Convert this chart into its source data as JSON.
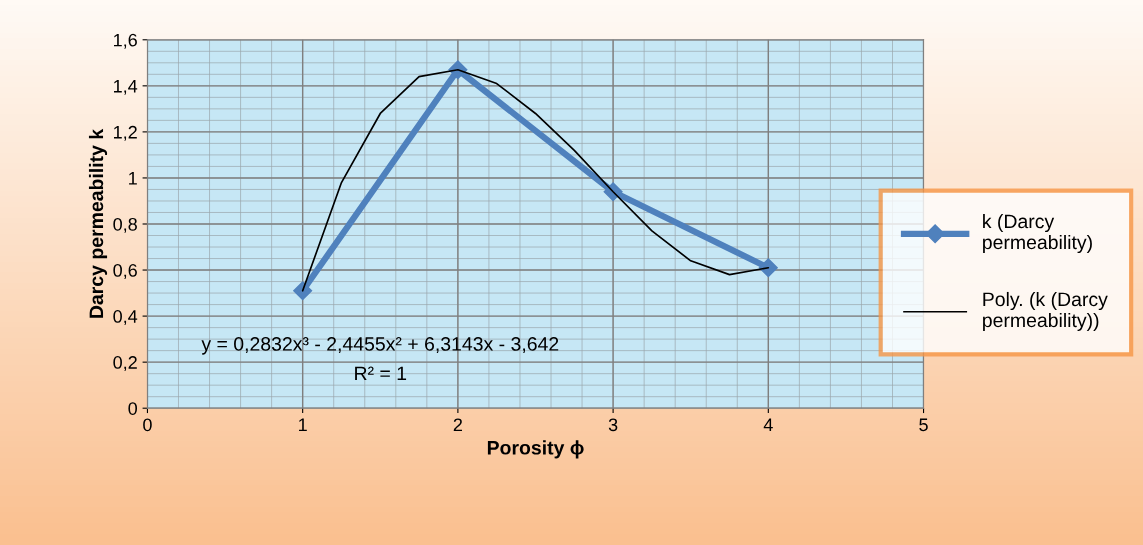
{
  "chart_data": {
    "type": "line",
    "xlabel": "Porosity ϕ",
    "ylabel": "Darcy permeability k",
    "xlim": [
      0,
      5
    ],
    "xticks": [
      0,
      1,
      2,
      3,
      4,
      5
    ],
    "ylim": [
      0,
      1.6
    ],
    "yticks": [
      0,
      {
        "value": 0.2,
        "label": "0,2"
      },
      {
        "value": 0.4,
        "label": "0,4"
      },
      {
        "value": 0.6,
        "label": "0,6"
      },
      {
        "value": 0.8,
        "label": "0,8"
      },
      1,
      {
        "value": 1.2,
        "label": "1,2"
      },
      {
        "value": 1.4,
        "label": "1,4"
      },
      {
        "value": 1.6,
        "label": "1,6"
      }
    ],
    "grid": true,
    "legend": "right",
    "series": [
      {
        "name": "k (Darcy\npermeability)",
        "color": "#4f81bd",
        "marker": "diamond",
        "x": [
          1,
          2,
          3,
          4
        ],
        "values": [
          0.51,
          1.47,
          0.94,
          0.61
        ]
      },
      {
        "name": "Poly. (k (Darcy\npermeability))",
        "color": "#000000",
        "marker": "none",
        "x": [
          1,
          1.25,
          1.5,
          1.75,
          2,
          2.25,
          2.5,
          2.75,
          3,
          3.25,
          3.5,
          3.75,
          4
        ],
        "values": [
          0.51,
          0.98,
          1.28,
          1.44,
          1.47,
          1.41,
          1.28,
          1.12,
          0.94,
          0.77,
          0.64,
          0.58,
          0.61
        ]
      }
    ],
    "annotations": [
      "y = 0,2832x³ - 2,4455x² + 6,3143x - 3,642",
      "R² = 1"
    ]
  }
}
